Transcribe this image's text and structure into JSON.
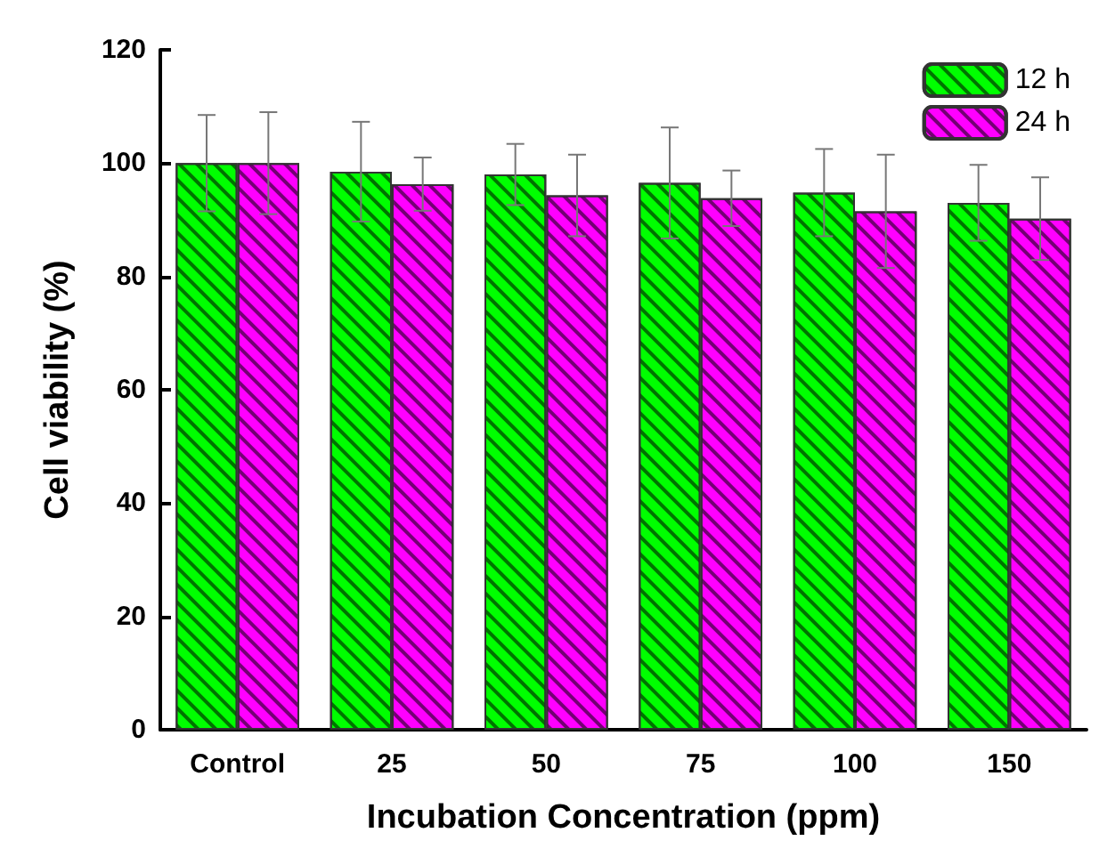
{
  "chart_data": {
    "type": "bar",
    "xlabel": "Incubation Concentration (ppm)",
    "ylabel": "Cell viability (%)",
    "categories": [
      "Control",
      "25",
      "50",
      "75",
      "100",
      "150"
    ],
    "series": [
      {
        "name": "12 h",
        "color": "#00ff00",
        "values": [
          100,
          98.5,
          98,
          96.5,
          94.8,
          93
        ],
        "errors": [
          8.5,
          8.8,
          5.4,
          9.8,
          7.7,
          6.7
        ]
      },
      {
        "name": "24 h",
        "color": "#ff00ff",
        "values": [
          100,
          96.3,
          94.3,
          93.8,
          91.5,
          90.2
        ],
        "errors": [
          9,
          4.7,
          7.2,
          4.9,
          10,
          7.3
        ]
      }
    ],
    "ylim": [
      0,
      120
    ],
    "yticks": [
      0,
      20,
      40,
      60,
      80,
      100,
      120
    ],
    "grid": false,
    "legend": "top right"
  }
}
